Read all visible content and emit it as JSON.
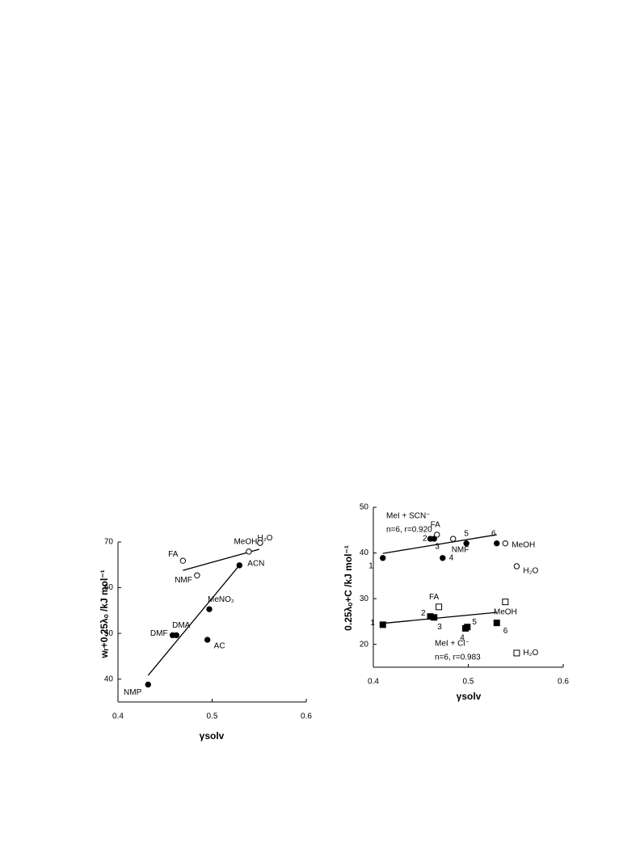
{
  "chart_data": [
    {
      "type": "scatter",
      "x_label": "γsolv",
      "y_label": "wᵣ+0.25λₒ /kJ mol⁻¹",
      "xlim": [
        0.4,
        0.6
      ],
      "xticks": [
        0.4,
        0.5,
        0.6
      ],
      "ylim": [
        35,
        70
      ],
      "yticks": [
        40,
        50,
        60,
        70
      ],
      "series": [
        {
          "marker": "circle",
          "filled": true,
          "color": "#000000",
          "x": [
            0.432,
            0.458,
            0.462,
            0.497,
            0.529,
            0.495
          ],
          "y": [
            38.8,
            49.6,
            49.6,
            55.3,
            64.9,
            48.6
          ],
          "labels": [
            "NMP",
            "DMF",
            "DMA",
            "MeNO₂",
            "ACN",
            "AC"
          ],
          "fit": {
            "x": [
              0.432,
              0.529
            ],
            "y": [
              40.8,
              64.9
            ]
          }
        },
        {
          "marker": "circle",
          "filled": false,
          "color": "#000000",
          "x": [
            0.469,
            0.484,
            0.539,
            0.551
          ],
          "y": [
            65.9,
            62.7,
            67.9,
            69.8
          ],
          "labels": [
            "FA",
            "NMF",
            "MeOH",
            "H₂O"
          ],
          "fit": {
            "x": [
              0.469,
              0.55
            ],
            "y": [
              63.8,
              68.4
            ]
          }
        }
      ]
    },
    {
      "type": "scatter",
      "x_label": "γsolv",
      "y_label": "0.25λₒ+C /kJ mol⁻¹",
      "xlim": [
        0.4,
        0.6
      ],
      "xticks": [
        0.4,
        0.5,
        0.6
      ],
      "ylim": [
        15,
        50
      ],
      "yticks": [
        20,
        30,
        40,
        50
      ],
      "annotations": [
        "MeI + SCN⁻",
        "n=6, r=0.920",
        "MeI + Cl⁻",
        "n=6, r=0.983"
      ],
      "series": [
        {
          "marker": "circle",
          "filled": true,
          "color": "#000000",
          "x": [
            0.41,
            0.46,
            0.464,
            0.473,
            0.498,
            0.53
          ],
          "y": [
            38.9,
            43.1,
            43.1,
            38.9,
            42.1,
            42.1
          ],
          "labels": [
            "1",
            "2",
            "3",
            "4",
            "5",
            "6"
          ],
          "fit": {
            "x": [
              0.41,
              0.53
            ],
            "y": [
              39.9,
              44.0
            ]
          }
        },
        {
          "marker": "circle",
          "filled": false,
          "color": "#000000",
          "x": [
            0.467,
            0.484,
            0.539,
            0.551
          ],
          "y": [
            44.0,
            43.1,
            42.1,
            37.1
          ],
          "labels": [
            "FA",
            "NMF",
            "MeOH",
            "H₂O"
          ]
        },
        {
          "marker": "square",
          "filled": true,
          "color": "#000000",
          "x": [
            0.41,
            0.46,
            0.464,
            0.497,
            0.499,
            0.53
          ],
          "y": [
            24.3,
            26.1,
            25.9,
            23.5,
            23.8,
            24.7
          ],
          "labels": [
            "1",
            "2",
            "3",
            "4",
            "5",
            "6"
          ],
          "fit": {
            "x": [
              0.41,
              0.53
            ],
            "y": [
              24.6,
              27.0
            ]
          }
        },
        {
          "marker": "square",
          "filled": false,
          "color": "#000000",
          "x": [
            0.469,
            0.539,
            0.551
          ],
          "y": [
            28.2,
            29.3,
            18.1
          ],
          "labels": [
            "FA",
            "MeOH",
            "H₂O"
          ]
        }
      ]
    }
  ]
}
